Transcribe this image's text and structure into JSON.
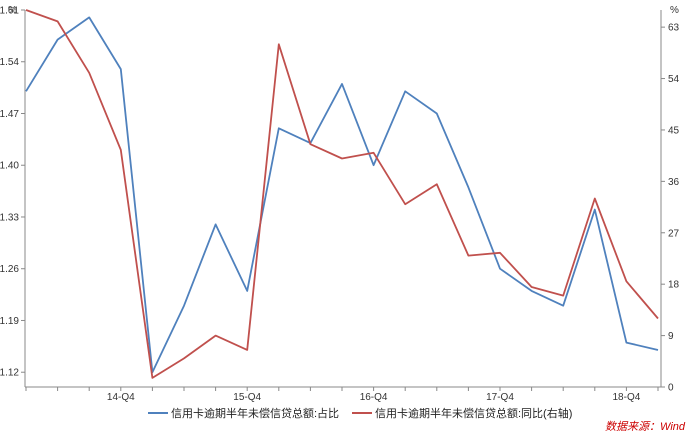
{
  "chart_data": {
    "type": "line",
    "x": [
      "14-Q1",
      "14-Q2",
      "14-Q3",
      "14-Q4",
      "15-Q1",
      "15-Q2",
      "15-Q3",
      "15-Q4",
      "16-Q1",
      "16-Q2",
      "16-Q3",
      "16-Q4",
      "17-Q1",
      "17-Q2",
      "17-Q3",
      "17-Q4",
      "18-Q1",
      "18-Q2",
      "18-Q3",
      "18-Q4",
      "19-Q1"
    ],
    "x_tick_labels": [
      "14-Q4",
      "15-Q4",
      "16-Q4",
      "17-Q4",
      "18-Q4"
    ],
    "x_tick_positions": [
      "14-Q4",
      "15-Q4",
      "16-Q4",
      "17-Q4",
      "18-Q4"
    ],
    "left_axis": {
      "unit": "%",
      "ylim": [
        1.1,
        1.61
      ],
      "ticks": [
        "1.12",
        "1.19",
        "1.26",
        "1.33",
        "1.40",
        "1.47",
        "1.54",
        "1.61"
      ]
    },
    "right_axis": {
      "unit": "%",
      "ylim": [
        0,
        66
      ],
      "ticks": [
        "0",
        "9",
        "18",
        "27",
        "36",
        "45",
        "54",
        "63"
      ]
    },
    "series": [
      {
        "name": "信用卡逾期半年未偿信贷总额:占比",
        "axis": "left",
        "color": "#4f81bd",
        "values": [
          1.5,
          1.57,
          1.6,
          1.53,
          1.12,
          1.21,
          1.32,
          1.23,
          1.45,
          1.43,
          1.51,
          1.4,
          1.5,
          1.47,
          1.37,
          1.26,
          1.23,
          1.21,
          1.34,
          1.16,
          1.15
        ]
      },
      {
        "name": "信用卡逾期半年未偿信贷总额:同比(右轴)",
        "axis": "right",
        "color": "#c0504d",
        "values": [
          66,
          64,
          55,
          41.5,
          1.6,
          5,
          9,
          6.5,
          60,
          42.5,
          40,
          41,
          32,
          35.5,
          23,
          23.5,
          17.5,
          16,
          33,
          18.5,
          12
        ]
      }
    ],
    "legend_position": "bottom",
    "grid": false,
    "source": "数据来源：Wind"
  }
}
